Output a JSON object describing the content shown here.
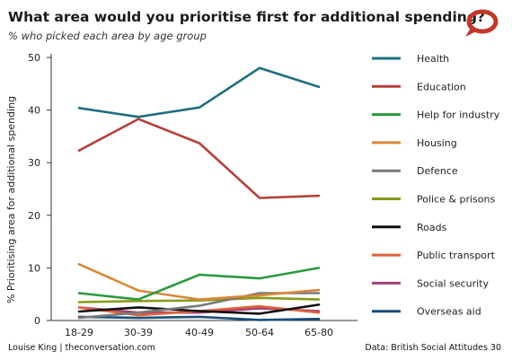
{
  "header": {
    "title": "What area would you prioritise first for additional spending?",
    "subtitle": "% who picked each area by age group"
  },
  "footer": {
    "credit": "Louise King | theconversation.com",
    "source": "Data: British Social Attitudes 30"
  },
  "logo": {
    "icon": "speech-bubble-icon",
    "color": "#c0392b"
  },
  "chart_data": {
    "type": "line",
    "categories": [
      "18-29",
      "30-39",
      "40-49",
      "50-64",
      "65-80"
    ],
    "ylabel": "% Prioritising area for additional spending",
    "xlabel": "",
    "ylim": [
      0,
      50
    ],
    "yticks": [
      0,
      10,
      20,
      30,
      40,
      50
    ],
    "grid": false,
    "legend_position": "right",
    "series": [
      {
        "name": "Health",
        "color": "#1f6f7f",
        "values": [
          40.4,
          38.7,
          40.5,
          48.0,
          44.4
        ]
      },
      {
        "name": "Education",
        "color": "#b5403a",
        "values": [
          32.3,
          38.3,
          33.7,
          23.3,
          23.7
        ]
      },
      {
        "name": "Help for industry",
        "color": "#2a9a3e",
        "values": [
          5.2,
          4.0,
          8.7,
          8.0,
          10.0
        ]
      },
      {
        "name": "Housing",
        "color": "#d9873a",
        "values": [
          10.7,
          5.7,
          4.0,
          4.8,
          5.8
        ]
      },
      {
        "name": "Defence",
        "color": "#7a7a7a",
        "values": [
          0.5,
          1.5,
          2.8,
          5.2,
          5.2
        ]
      },
      {
        "name": "Police & prisons",
        "color": "#8a9a1a",
        "values": [
          3.5,
          3.7,
          3.8,
          4.3,
          4.0
        ]
      },
      {
        "name": "Roads",
        "color": "#111111",
        "values": [
          1.7,
          2.5,
          1.8,
          1.3,
          3.0
        ]
      },
      {
        "name": "Public transport",
        "color": "#e0603a",
        "values": [
          2.5,
          1.0,
          1.8,
          2.7,
          1.5
        ]
      },
      {
        "name": "Social security",
        "color": "#a0407a",
        "values": [
          2.5,
          1.5,
          1.5,
          2.3,
          1.8
        ]
      },
      {
        "name": "Overseas aid",
        "color": "#1a4f7a",
        "values": [
          0.7,
          0.5,
          0.7,
          0.1,
          0.3
        ]
      }
    ]
  }
}
